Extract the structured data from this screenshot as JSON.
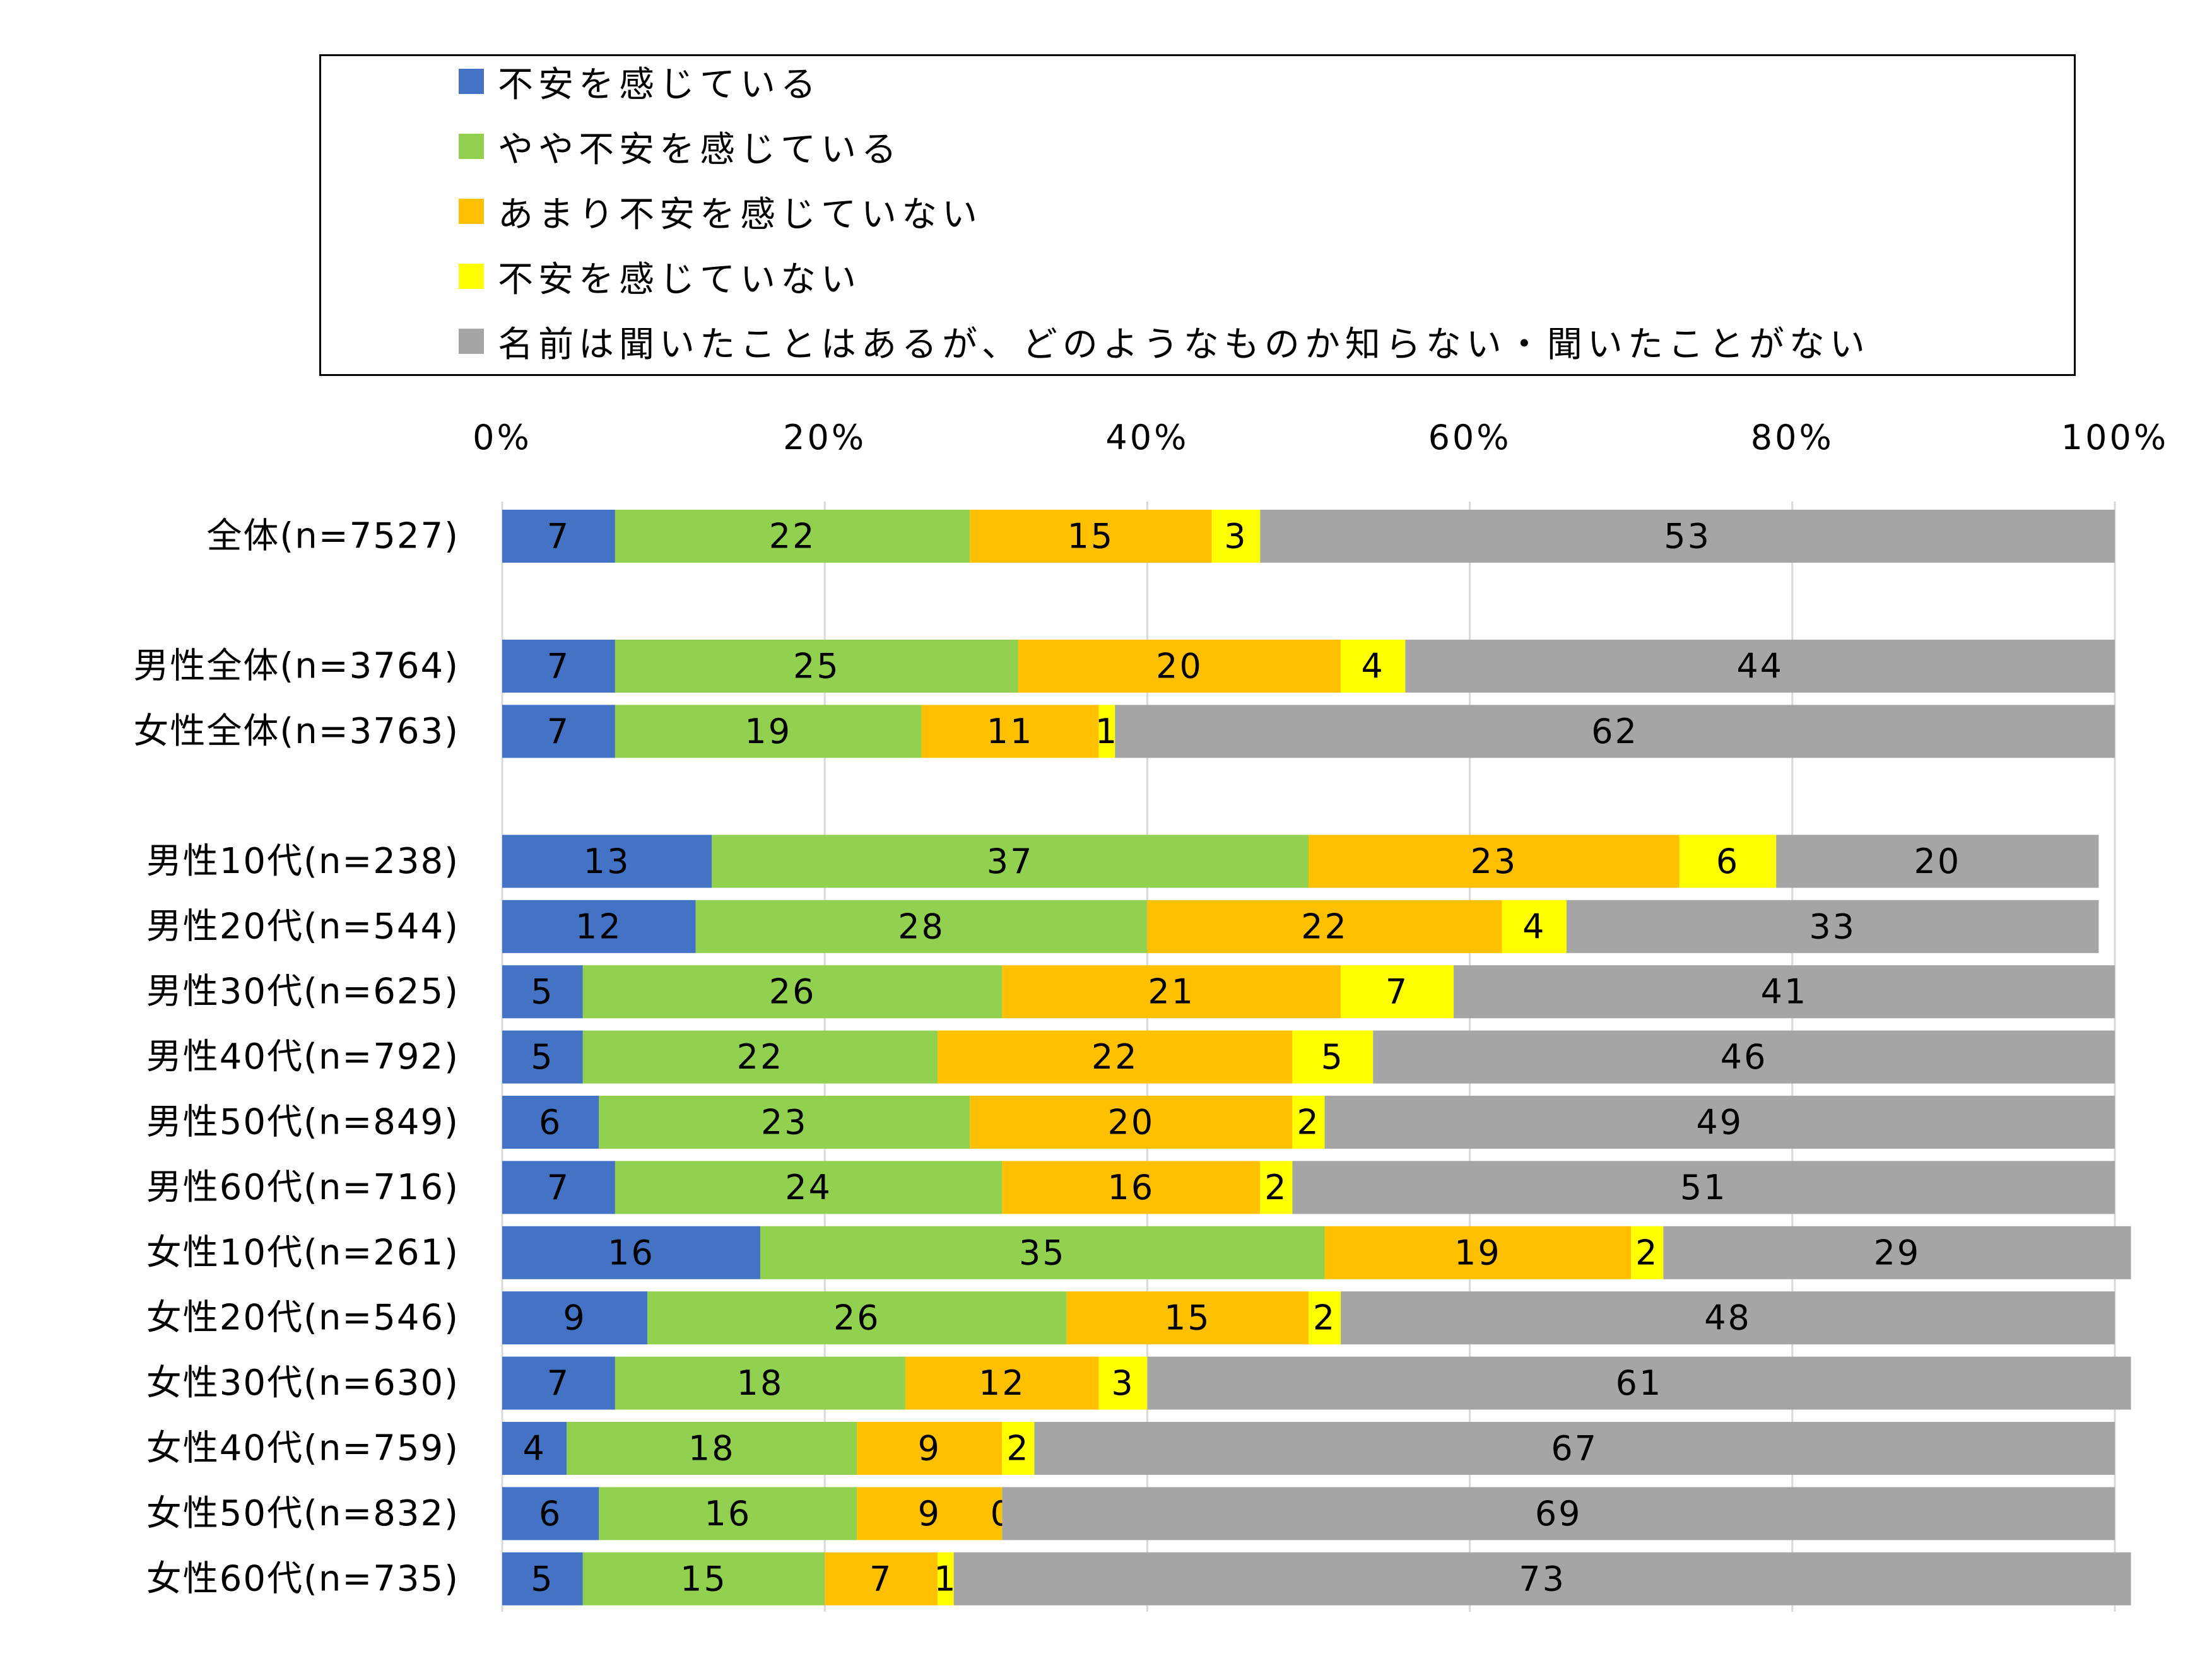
{
  "chart_data": {
    "type": "bar",
    "orientation": "horizontal",
    "stacked": true,
    "percent": true,
    "title": "",
    "xlabel": "",
    "ylabel": "",
    "xlim": [
      0,
      100
    ],
    "x_ticks": [
      "0%",
      "20%",
      "40%",
      "60%",
      "80%",
      "100%"
    ],
    "grid": true,
    "legend_position": "top",
    "categories": [
      "全体(n=7527)",
      "男性全体(n=3764)",
      "女性全体(n=3763)",
      "男性10代(n=238)",
      "男性20代(n=544)",
      "男性30代(n=625)",
      "男性40代(n=792)",
      "男性50代(n=849)",
      "男性60代(n=716)",
      "女性10代(n=261)",
      "女性20代(n=546)",
      "女性30代(n=630)",
      "女性40代(n=759)",
      "女性50代(n=832)",
      "女性60代(n=735)"
    ],
    "series": [
      {
        "name": "不安を感じている",
        "color": "#4472C4",
        "values": [
          7,
          7,
          7,
          13,
          12,
          5,
          5,
          6,
          7,
          16,
          9,
          7,
          4,
          6,
          5
        ]
      },
      {
        "name": "やや不安を感じている",
        "color": "#92D050",
        "values": [
          22,
          25,
          19,
          37,
          28,
          26,
          22,
          23,
          24,
          35,
          26,
          18,
          18,
          16,
          15
        ]
      },
      {
        "name": "あまり不安を感じていない",
        "color": "#FFC000",
        "values": [
          15,
          20,
          11,
          23,
          22,
          21,
          22,
          20,
          16,
          19,
          15,
          12,
          9,
          9,
          7
        ]
      },
      {
        "name": "不安を感じていない",
        "color": "#FFFF00",
        "values": [
          3,
          4,
          1,
          6,
          4,
          7,
          5,
          2,
          2,
          2,
          2,
          3,
          2,
          0,
          1
        ]
      },
      {
        "name": "名前は聞いたことはあるが、どのようなものか知らない・聞いたことがない",
        "color": "#A5A5A5",
        "values": [
          53,
          44,
          62,
          20,
          33,
          41,
          46,
          49,
          51,
          29,
          48,
          61,
          67,
          69,
          73
        ]
      }
    ],
    "group_gaps_after": [
      0,
      2
    ]
  }
}
